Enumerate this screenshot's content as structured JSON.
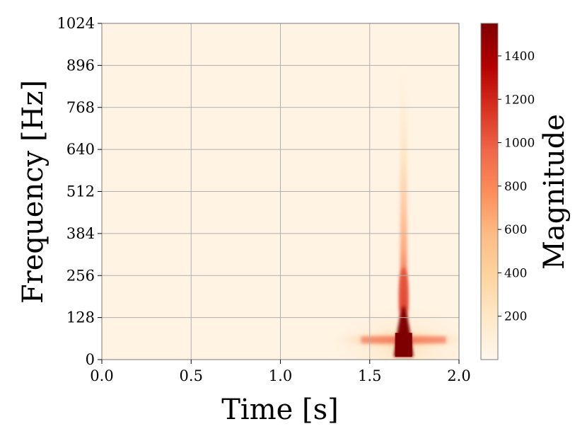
{
  "chart_data": {
    "type": "heatmap",
    "xlabel": "Time [s]",
    "ylabel": "Frequency [Hz]",
    "xlim": [
      0.0,
      2.0
    ],
    "ylim": [
      0,
      1024
    ],
    "x_ticks": [
      {
        "value": 0.0,
        "label": "0.0"
      },
      {
        "value": 0.5,
        "label": "0.5"
      },
      {
        "value": 1.0,
        "label": "1.0"
      },
      {
        "value": 1.5,
        "label": "1.5"
      },
      {
        "value": 2.0,
        "label": "2.0"
      }
    ],
    "y_ticks": [
      {
        "value": 0,
        "label": "0"
      },
      {
        "value": 128,
        "label": "128"
      },
      {
        "value": 256,
        "label": "256"
      },
      {
        "value": 384,
        "label": "384"
      },
      {
        "value": 512,
        "label": "512"
      },
      {
        "value": 640,
        "label": "640"
      },
      {
        "value": 768,
        "label": "768"
      },
      {
        "value": 896,
        "label": "896"
      },
      {
        "value": 1024,
        "label": "1024"
      }
    ],
    "grid": true,
    "colormap": "OrRd",
    "colorbar": {
      "label": "Magnitude",
      "range": [
        0,
        1550
      ],
      "ticks": [
        {
          "value": 200,
          "label": "200"
        },
        {
          "value": 400,
          "label": "400"
        },
        {
          "value": 600,
          "label": "600"
        },
        {
          "value": 800,
          "label": "800"
        },
        {
          "value": 1000,
          "label": "1000"
        },
        {
          "value": 1200,
          "label": "1200"
        },
        {
          "value": 1400,
          "label": "1400"
        }
      ]
    },
    "background_magnitude": 20,
    "event": {
      "time_s": 1.69,
      "core_freq_range_hz": [
        0,
        150
      ],
      "core_magnitude": 1550,
      "plume_top_freq_hz": 900,
      "side_band_freq_hz": 60,
      "side_band_time_range_s": [
        1.2,
        2.0
      ]
    }
  }
}
